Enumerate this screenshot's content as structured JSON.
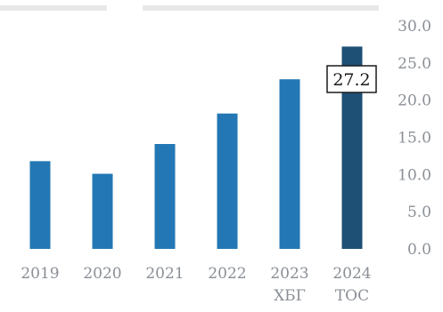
{
  "chart_data": {
    "type": "bar",
    "categories": [
      "2019",
      "2020",
      "2021",
      "2022",
      "2023",
      "2024"
    ],
    "sub_labels": [
      "",
      "",
      "",
      "",
      "ХБГ",
      "ТОС"
    ],
    "values": [
      11.8,
      10.1,
      14.1,
      18.2,
      22.8,
      27.2
    ],
    "ylim": [
      0,
      30
    ],
    "yticks": [
      "0.0",
      "5.0",
      "10.0",
      "15.0",
      "20.0",
      "25.0",
      "30.0"
    ],
    "grid": false,
    "y_axis_side": "right",
    "highlight": {
      "index": 5,
      "label": "27.2"
    },
    "colors": {
      "bar": "#2377b4",
      "bar_highlight": "#1e4f74",
      "text": "#8a8f96"
    }
  }
}
